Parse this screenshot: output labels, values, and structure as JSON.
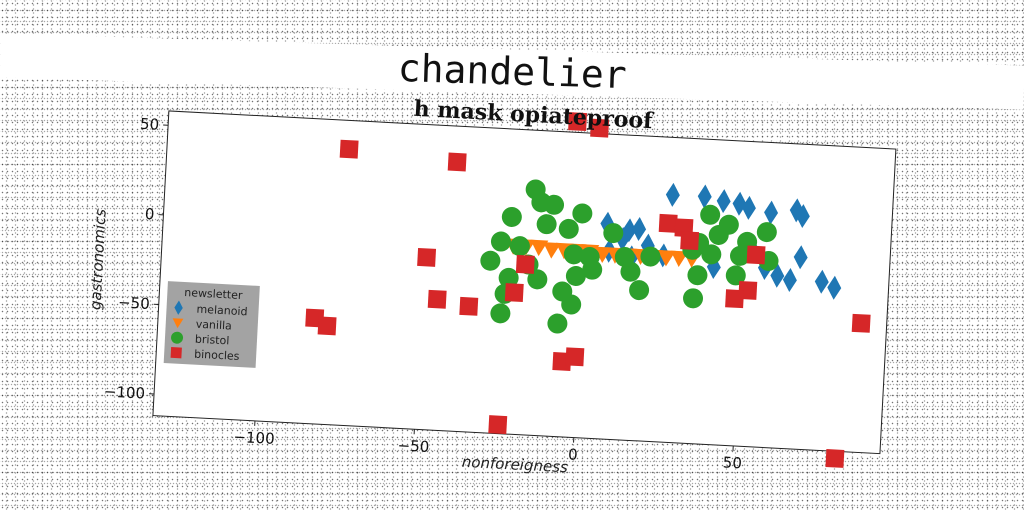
{
  "supertitle": "chandelier",
  "colors": {
    "melanoid": "#1f77b4",
    "vanilla": "#ff7f0e",
    "bristol": "#2ca02c",
    "binocles": "#d62728",
    "legend_bg": "#999999"
  },
  "chart_data": {
    "type": "scatter",
    "title": "h mask opiateproof",
    "xlabel": "nonforeigness",
    "ylabel": "gastronomics",
    "xlim": [
      -132,
      96
    ],
    "ylim": [
      -112,
      58
    ],
    "xticks": [
      -100,
      -50,
      0,
      50
    ],
    "yticks": [
      50,
      0,
      -50,
      -100
    ],
    "legend": {
      "title": "newsletter",
      "placement": "lower-left"
    },
    "series": [
      {
        "name": "melanoid",
        "marker": "diamond",
        "points": [
          [
            27,
            26
          ],
          [
            37,
            26
          ],
          [
            43,
            24
          ],
          [
            48,
            23
          ],
          [
            51,
            21
          ],
          [
            58,
            19
          ],
          [
            66,
            21
          ],
          [
            68,
            18
          ],
          [
            7,
            8
          ],
          [
            14,
            5
          ],
          [
            17,
            6
          ],
          [
            12,
            0
          ],
          [
            20,
            -3
          ],
          [
            25,
            -8
          ],
          [
            41,
            -13
          ],
          [
            53,
            -3
          ],
          [
            68,
            -5
          ],
          [
            61,
            -16
          ],
          [
            65,
            -18
          ],
          [
            8,
            -7
          ],
          [
            15,
            -10
          ],
          [
            75,
            -18
          ],
          [
            79,
            -21
          ],
          [
            57,
            -12
          ]
        ]
      },
      {
        "name": "vanilla",
        "marker": "triangle-down",
        "points": [
          [
            -22,
            -7
          ],
          [
            -18,
            -7
          ],
          [
            -14,
            -7
          ],
          [
            -10,
            -8
          ],
          [
            -6,
            -8
          ],
          [
            -2,
            -8
          ],
          [
            2,
            -8
          ],
          [
            6,
            -9
          ],
          [
            10,
            -9
          ],
          [
            14,
            -9
          ],
          [
            18,
            -9
          ],
          [
            22,
            -9
          ],
          [
            26,
            -9
          ],
          [
            30,
            -9
          ],
          [
            34,
            -9
          ]
        ]
      },
      {
        "name": "bristol",
        "marker": "circle",
        "points": [
          [
            -16,
            25
          ],
          [
            -14,
            18
          ],
          [
            -10,
            17
          ],
          [
            -23,
            9
          ],
          [
            -12,
            6
          ],
          [
            -5,
            4
          ],
          [
            -1,
            13
          ],
          [
            9,
            3
          ],
          [
            -26,
            -5
          ],
          [
            -20,
            -7
          ],
          [
            -3,
            -10
          ],
          [
            2,
            -11
          ],
          [
            13,
            -10
          ],
          [
            21,
            -9
          ],
          [
            -29,
            -16
          ],
          [
            -17,
            -17
          ],
          [
            -23,
            -25
          ],
          [
            -14,
            -25
          ],
          [
            -2,
            -22
          ],
          [
            -6,
            -31
          ],
          [
            -3,
            -38
          ],
          [
            -24,
            -34
          ],
          [
            15,
            -18
          ],
          [
            18,
            -28
          ],
          [
            34,
            -4
          ],
          [
            40,
            -6
          ],
          [
            36,
            0
          ],
          [
            39,
            16
          ],
          [
            45,
            11
          ],
          [
            42,
            5
          ],
          [
            51,
            2
          ],
          [
            49,
            -6
          ],
          [
            57,
            8
          ],
          [
            58,
            -8
          ],
          [
            48,
            -17
          ],
          [
            36,
            -18
          ],
          [
            35,
            -31
          ],
          [
            -7,
            -49
          ],
          [
            -25,
            -45
          ],
          [
            3,
            -18
          ]
        ]
      },
      {
        "name": "binocles",
        "marker": "square",
        "points": [
          [
            -75,
            42
          ],
          [
            -41,
            38
          ],
          [
            -4,
            64
          ],
          [
            3,
            61
          ],
          [
            -49,
            -16
          ],
          [
            -45,
            -39
          ],
          [
            -35,
            -42
          ],
          [
            -21,
            -33
          ],
          [
            -18,
            -17
          ],
          [
            -83,
            -53
          ],
          [
            -79,
            -57
          ],
          [
            -5,
            -70
          ],
          [
            -1,
            -67
          ],
          [
            -24,
            -107
          ],
          [
            26,
            10
          ],
          [
            31,
            8
          ],
          [
            33,
            1
          ],
          [
            54,
            -5
          ],
          [
            52,
            -25
          ],
          [
            48,
            -30
          ],
          [
            88,
            -40
          ],
          [
            82,
            -116
          ]
        ]
      }
    ]
  }
}
